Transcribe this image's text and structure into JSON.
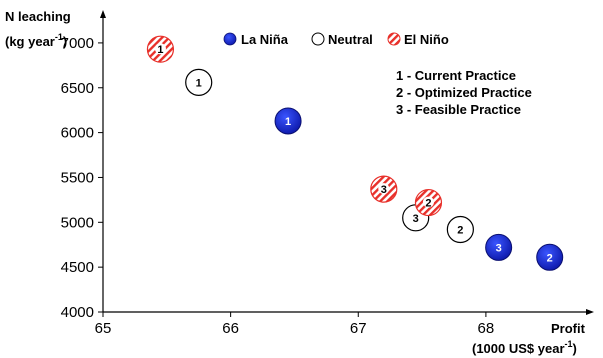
{
  "chart_data": {
    "type": "scatter",
    "ylabel": "N leaching",
    "yunit_prefix": "(kg year",
    "yunit_exp": "-1",
    "yunit_suffix": ")",
    "xlabel": "Profit",
    "xunit_prefix": "(1000 US$ year",
    "xunit_exp": "-1",
    "xunit_suffix": ")",
    "xlim": [
      65,
      68.8
    ],
    "ylim": [
      4000,
      7300
    ],
    "xticks": [
      65,
      66,
      67,
      68
    ],
    "yticks": [
      4000,
      4500,
      5000,
      5500,
      6000,
      6500,
      7000
    ],
    "grid": false,
    "legend_position": "top",
    "colors": {
      "la_nina": "#1c28d0",
      "neutral": "#ffffff",
      "el_nino": "#e8302a"
    },
    "series": [
      {
        "name": "La Niña",
        "style": "la_nina",
        "points": [
          {
            "x": 66.45,
            "y": 6130,
            "label": "1"
          },
          {
            "x": 68.5,
            "y": 4610,
            "label": "2"
          },
          {
            "x": 68.1,
            "y": 4720,
            "label": "3"
          }
        ]
      },
      {
        "name": "Neutral",
        "style": "neutral",
        "points": [
          {
            "x": 65.75,
            "y": 6560,
            "label": "1"
          },
          {
            "x": 67.8,
            "y": 4920,
            "label": "2"
          },
          {
            "x": 67.45,
            "y": 5050,
            "label": "3"
          }
        ]
      },
      {
        "name": "El Niño",
        "style": "el_nino",
        "points": [
          {
            "x": 65.45,
            "y": 6930,
            "label": "1"
          },
          {
            "x": 67.55,
            "y": 5220,
            "label": "2"
          },
          {
            "x": 67.2,
            "y": 5370,
            "label": "3"
          }
        ]
      }
    ],
    "annotations": [
      "1 - Current Practice",
      "2 - Optimized Practice",
      "3 - Feasible Practice"
    ]
  }
}
